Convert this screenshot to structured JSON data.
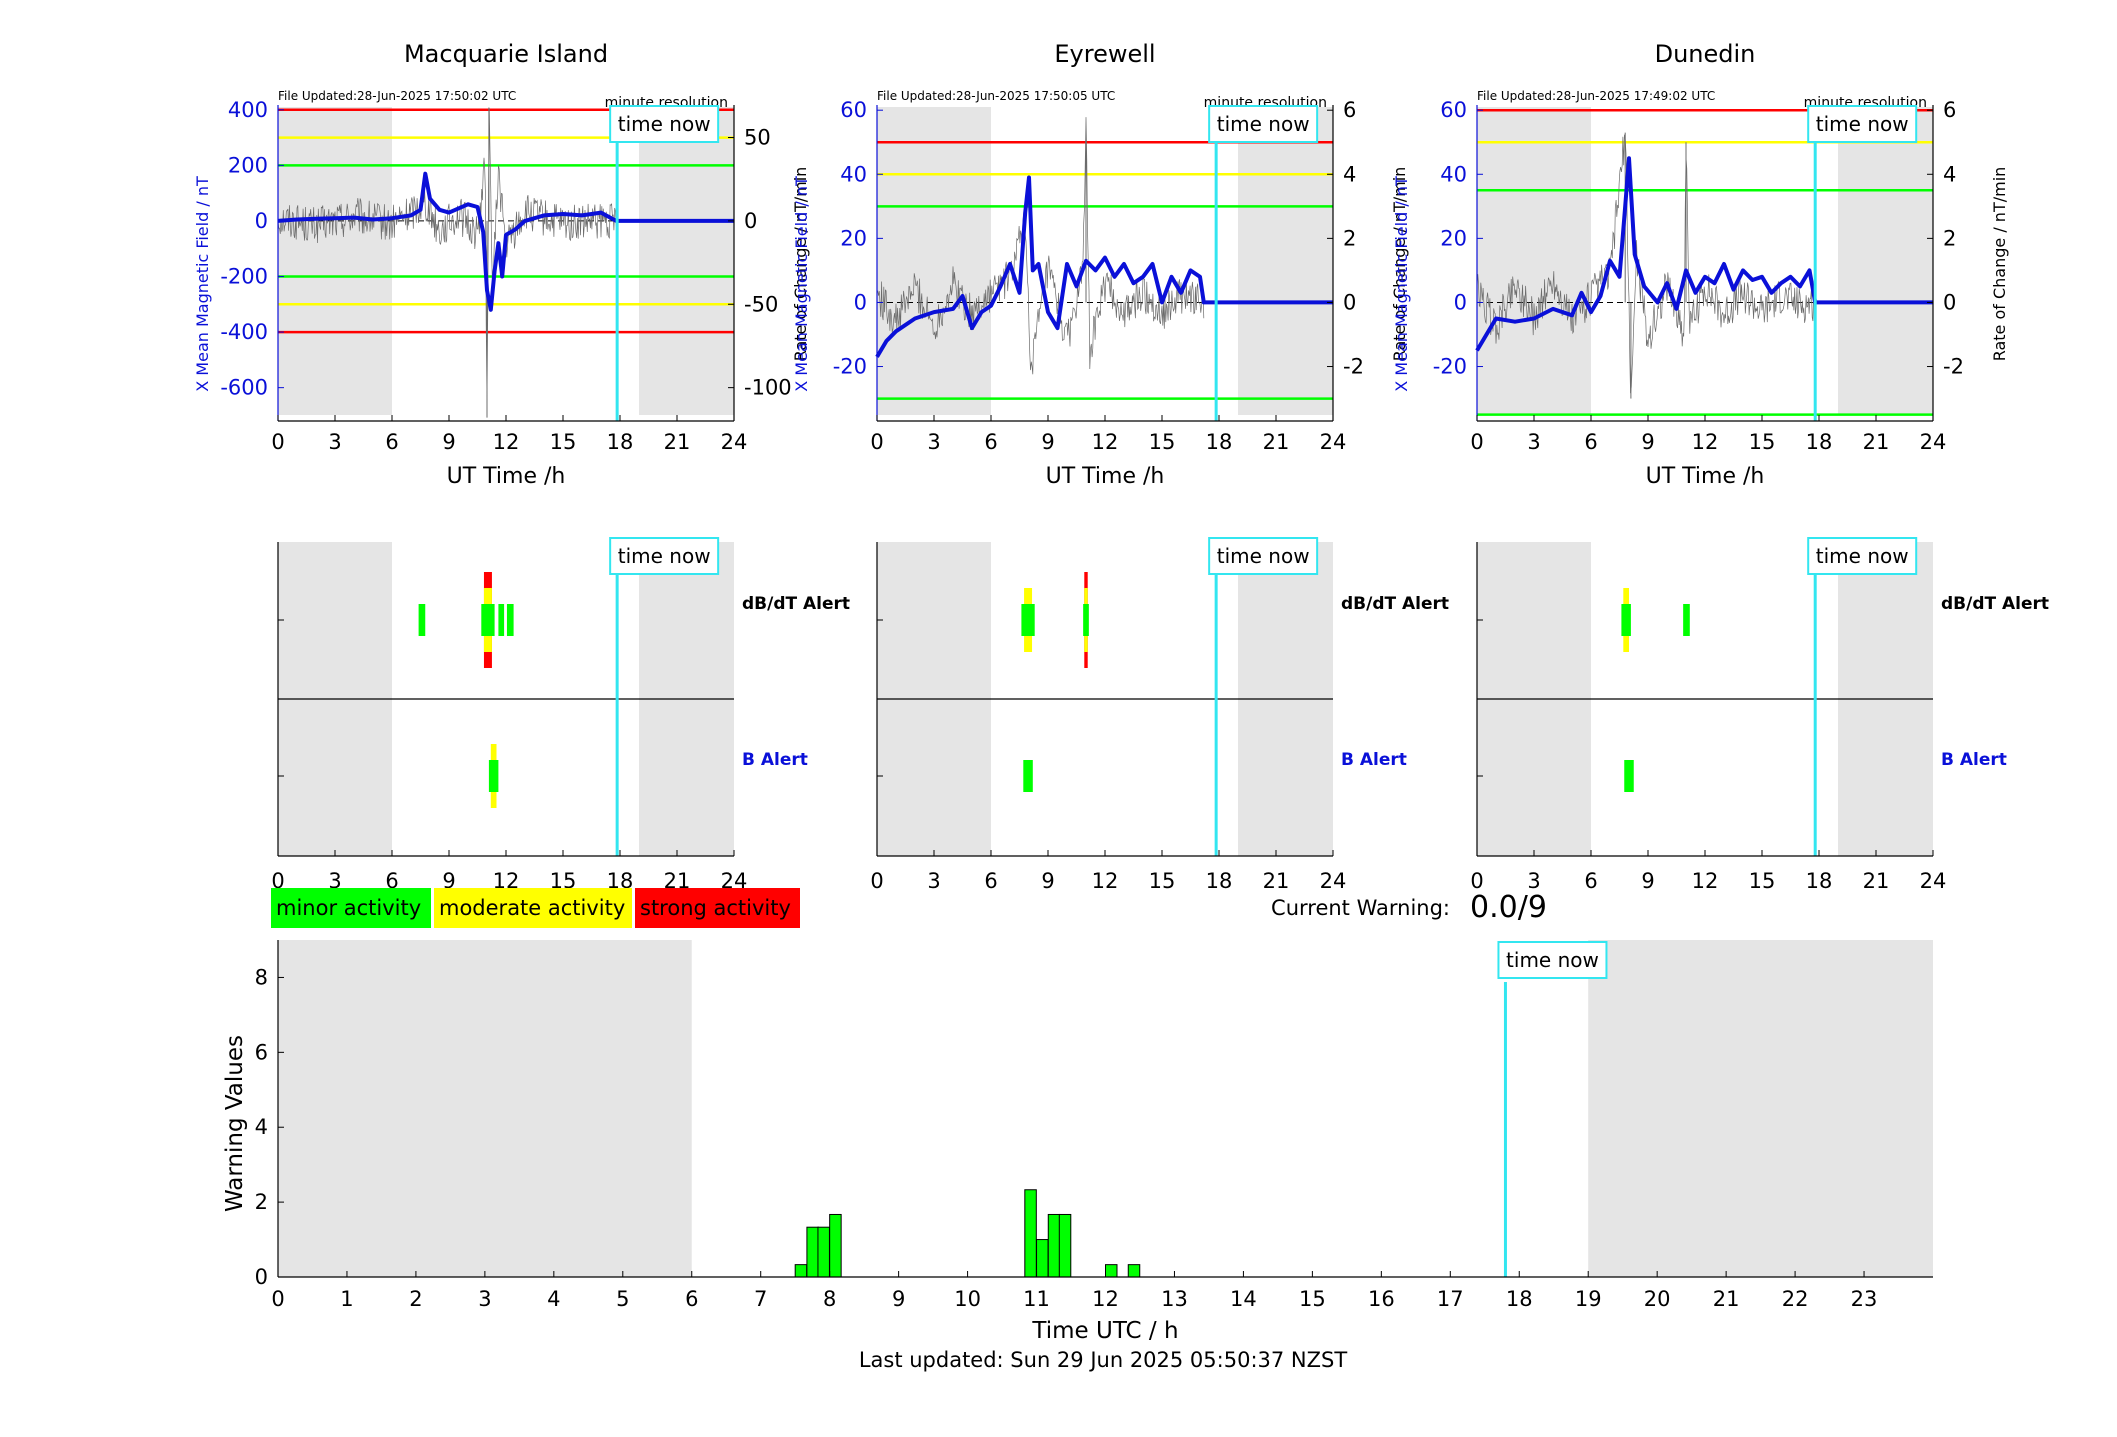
{
  "colors": {
    "blue": "#0a10d8",
    "red": "#ff0000",
    "yellow": "#ffff00",
    "green": "#00ff00",
    "cyan": "#33e6f0",
    "shade": "#e5e5e5",
    "noise": "#6b6b6b"
  },
  "text": {
    "x_label": "UT Time /h",
    "file_prefix": "File Updated:",
    "minute_resolution": "minute resolution",
    "time_now": "time now",
    "dbdt_alert": "dB/dT Alert",
    "b_alert": "B Alert",
    "current_warning_label": "Current Warning:",
    "current_warning_value": "0.0/9",
    "warning_ylabel": "Warning Values",
    "warning_xlabel": "Time UTC / h",
    "last_updated": "Last updated: Sun 29 Jun 2025 05:50:37 NZST"
  },
  "legend": [
    {
      "label": "minor activity",
      "color": "#00ff00"
    },
    {
      "label": "moderate activity",
      "color": "#ffff00"
    },
    {
      "label": "strong activity",
      "color": "#ff0000"
    }
  ],
  "chart_data": [
    {
      "type": "line",
      "title": "Macquarie Island",
      "file_updated": "28-Jun-2025 17:50:02 UTC",
      "xlabel": "UT Time /h",
      "ylabel": "X Mean Magnetic Field / nT",
      "ylabel_right": "Rate of Change / nT/min",
      "xlim": [
        0,
        24
      ],
      "xticks": [
        0,
        3,
        6,
        9,
        12,
        15,
        18,
        21,
        24
      ],
      "ylim": [
        -720,
        410
      ],
      "yticks": [
        -600,
        -400,
        -200,
        0,
        200,
        400
      ],
      "ylim_right": [
        -120,
        68.3
      ],
      "yticks_right": [
        -100,
        -50,
        0,
        50
      ],
      "shaded_x": [
        [
          0,
          6
        ],
        [
          19,
          24
        ]
      ],
      "time_now": 17.85,
      "thresholds": [
        {
          "color": "red",
          "value": 400
        },
        {
          "color": "red",
          "value": -400
        },
        {
          "color": "yellow",
          "value": 300
        },
        {
          "color": "yellow",
          "value": -300
        },
        {
          "color": "green",
          "value": 200
        },
        {
          "color": "green",
          "value": -200
        }
      ],
      "x_field": {
        "x": [
          0,
          1,
          2,
          3,
          4,
          5,
          6,
          7,
          7.5,
          7.75,
          8.0,
          8.5,
          9,
          10,
          10.5,
          10.8,
          11.0,
          11.2,
          11.4,
          11.6,
          11.8,
          12.0,
          12.5,
          13,
          14,
          15,
          16,
          17,
          17.8,
          24
        ],
        "values": [
          0,
          5,
          8,
          10,
          12,
          5,
          10,
          20,
          40,
          170,
          80,
          40,
          30,
          60,
          50,
          -40,
          -250,
          -320,
          -180,
          -80,
          -200,
          -50,
          -30,
          0,
          20,
          25,
          20,
          30,
          0,
          0
        ]
      },
      "rate_of_change": {
        "x": [
          0,
          2,
          4,
          6,
          7,
          7.75,
          8.5,
          9.5,
          10.5,
          10.9,
          11.0,
          11.1,
          11.3,
          11.6,
          12.0,
          13,
          15,
          17.8
        ],
        "values": [
          2,
          -3,
          3,
          -2,
          5,
          12,
          -6,
          4,
          -8,
          35,
          -118,
          68,
          -40,
          30,
          -15,
          5,
          -2,
          0
        ]
      },
      "alerts": {
        "dbdt": [
          {
            "start": 7.4,
            "end": 7.75,
            "levels": [
              "green"
            ]
          },
          {
            "start": 10.7,
            "end": 11.4,
            "levels": [
              "green",
              "yellow",
              "red"
            ]
          },
          {
            "start": 11.6,
            "end": 11.9,
            "levels": [
              "green"
            ]
          },
          {
            "start": 12.05,
            "end": 12.4,
            "levels": [
              "green"
            ]
          }
        ],
        "b": [
          {
            "start": 11.1,
            "end": 11.6,
            "levels": [
              "green",
              "yellow"
            ]
          }
        ]
      }
    },
    {
      "type": "line",
      "title": "Eyrewell",
      "file_updated": "28-Jun-2025 17:50:05 UTC",
      "xlabel": "UT Time /h",
      "ylabel": "X Mean Magnetic Field / nT",
      "ylabel_right": "Rate of Change / nT/min",
      "xlim": [
        0,
        24
      ],
      "xticks": [
        0,
        3,
        6,
        9,
        12,
        15,
        18,
        21,
        24
      ],
      "ylim": [
        -37,
        61
      ],
      "yticks": [
        -20,
        0,
        20,
        40,
        60
      ],
      "ylim_right": [
        -3.7,
        6.1
      ],
      "yticks_right": [
        -2,
        0,
        2,
        4,
        6
      ],
      "shaded_x": [
        [
          0,
          6
        ],
        [
          19,
          24
        ]
      ],
      "time_now": 17.85,
      "thresholds": [
        {
          "color": "red",
          "value": 50
        },
        {
          "color": "yellow",
          "value": 40
        },
        {
          "color": "green",
          "value": 30
        },
        {
          "color": "green",
          "value": -30
        }
      ],
      "x_field": {
        "x": [
          0,
          0.5,
          1,
          2,
          3,
          4,
          4.5,
          5,
          5.5,
          6,
          6.5,
          7,
          7.5,
          7.8,
          8.0,
          8.2,
          8.5,
          9,
          9.5,
          10,
          10.5,
          11,
          11.5,
          12,
          12.5,
          13,
          13.5,
          14,
          14.5,
          15,
          15.5,
          16,
          16.5,
          17,
          17.2,
          24
        ],
        "values": [
          -17,
          -12,
          -9,
          -5,
          -3,
          -2,
          2,
          -8,
          -3,
          -1,
          5,
          12,
          3,
          28,
          39,
          10,
          12,
          -3,
          -8,
          12,
          5,
          13,
          10,
          14,
          8,
          12,
          6,
          8,
          12,
          0,
          8,
          3,
          10,
          8,
          0,
          0
        ]
      },
      "rate_of_change": {
        "x": [
          0,
          1,
          2,
          3,
          4,
          5,
          6,
          7,
          7.8,
          8.1,
          9,
          10,
          10.8,
          11.0,
          11.2,
          12,
          13,
          14,
          15,
          16,
          17.2
        ],
        "values": [
          0.3,
          -0.6,
          0.5,
          -0.8,
          0.6,
          -0.4,
          0.3,
          0.8,
          2.5,
          -2.0,
          1.0,
          -1.2,
          0.8,
          5.2,
          -1.5,
          0.6,
          -0.4,
          0.3,
          -0.3,
          0.2,
          0
        ]
      },
      "alerts": {
        "dbdt": [
          {
            "start": 7.6,
            "end": 8.3,
            "levels": [
              "green",
              "yellow"
            ]
          },
          {
            "start": 10.85,
            "end": 11.15,
            "levels": [
              "green",
              "yellow",
              "red"
            ]
          }
        ],
        "b": [
          {
            "start": 7.7,
            "end": 8.2,
            "levels": [
              "green"
            ]
          }
        ]
      }
    },
    {
      "type": "line",
      "title": "Dunedin",
      "file_updated": "28-Jun-2025 17:49:02 UTC",
      "xlabel": "UT Time /h",
      "ylabel": "X Mean Magnetic Field / nT",
      "ylabel_right": "Rate of Change / nT/min",
      "xlim": [
        0,
        24
      ],
      "xticks": [
        0,
        3,
        6,
        9,
        12,
        15,
        18,
        21,
        24
      ],
      "ylim": [
        -37,
        61
      ],
      "yticks": [
        -20,
        0,
        20,
        40,
        60
      ],
      "ylim_right": [
        -3.7,
        6.1
      ],
      "yticks_right": [
        -2,
        0,
        2,
        4,
        6
      ],
      "shaded_x": [
        [
          0,
          6
        ],
        [
          19,
          24
        ]
      ],
      "time_now": 17.8,
      "thresholds": [
        {
          "color": "red",
          "value": 60
        },
        {
          "color": "yellow",
          "value": 50
        },
        {
          "color": "green",
          "value": 35
        },
        {
          "color": "green",
          "value": -35
        }
      ],
      "x_field": {
        "x": [
          0,
          0.5,
          1,
          2,
          3,
          4,
          5,
          5.5,
          6,
          6.5,
          7,
          7.5,
          7.8,
          8.0,
          8.3,
          8.8,
          9.5,
          10,
          10.5,
          11,
          11.5,
          12,
          12.5,
          13,
          13.5,
          14,
          14.5,
          15,
          15.5,
          16,
          16.5,
          17,
          17.5,
          17.8,
          24
        ],
        "values": [
          -15,
          -10,
          -5,
          -6,
          -5,
          -2,
          -4,
          3,
          -3,
          2,
          13,
          8,
          30,
          45,
          15,
          5,
          0,
          6,
          -2,
          10,
          3,
          8,
          6,
          12,
          4,
          10,
          7,
          8,
          3,
          6,
          8,
          5,
          10,
          0,
          0
        ]
      },
      "rate_of_change": {
        "x": [
          0,
          1,
          2,
          3,
          4,
          5,
          6,
          7,
          7.8,
          8.1,
          8.4,
          9,
          10,
          10.9,
          11.0,
          11.2,
          12,
          13,
          14,
          15,
          16,
          17,
          17.8
        ],
        "values": [
          0.4,
          -0.8,
          0.6,
          -0.5,
          0.7,
          -0.6,
          0.2,
          0.9,
          5.3,
          -3.0,
          1.5,
          -1.2,
          0.6,
          -1.0,
          5.0,
          -0.8,
          0.5,
          -0.4,
          0.3,
          -0.3,
          0.2,
          -0.1,
          0
        ]
      },
      "alerts": {
        "dbdt": [
          {
            "start": 7.6,
            "end": 8.1,
            "levels": [
              "green",
              "yellow"
            ]
          },
          {
            "start": 10.85,
            "end": 11.2,
            "levels": [
              "green"
            ]
          }
        ],
        "b": [
          {
            "start": 7.75,
            "end": 8.25,
            "levels": [
              "green"
            ]
          }
        ]
      }
    },
    {
      "type": "bar",
      "xlabel": "Time UTC / h",
      "ylabel": "Warning Values",
      "xlim": [
        0,
        24
      ],
      "xticks": [
        0,
        1,
        2,
        3,
        4,
        5,
        6,
        7,
        8,
        9,
        10,
        11,
        12,
        13,
        14,
        15,
        16,
        17,
        18,
        19,
        20,
        21,
        22,
        23
      ],
      "ylim": [
        0,
        9
      ],
      "yticks": [
        0,
        2,
        4,
        6,
        8
      ],
      "shaded_x": [
        [
          0,
          6
        ],
        [
          19,
          24
        ]
      ],
      "time_now": 17.8,
      "bar_width": 0.1667,
      "x": [
        7.5,
        7.67,
        7.83,
        8.0,
        10.83,
        11.0,
        11.17,
        11.33,
        12.0,
        12.33
      ],
      "values": [
        0.33,
        1.33,
        1.33,
        1.67,
        2.33,
        1.0,
        1.67,
        1.67,
        0.33,
        0.33
      ]
    }
  ]
}
